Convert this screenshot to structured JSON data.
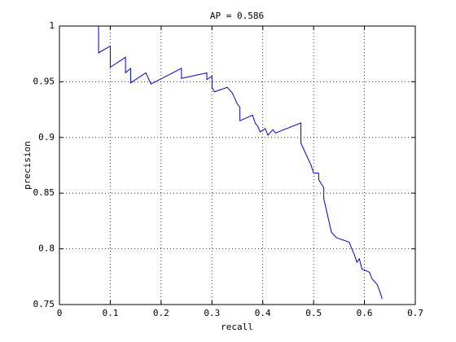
{
  "chart_data": {
    "type": "line",
    "title": "AP = 0.586",
    "x_label": "recall",
    "y_label": "precision",
    "x": [
      0.077,
      0.077,
      0.1,
      0.1,
      0.13,
      0.13,
      0.14,
      0.14,
      0.16,
      0.17,
      0.18,
      0.24,
      0.24,
      0.29,
      0.29,
      0.3,
      0.3,
      0.305,
      0.33,
      0.34,
      0.345,
      0.35,
      0.355,
      0.355,
      0.38,
      0.385,
      0.39,
      0.395,
      0.405,
      0.41,
      0.42,
      0.425,
      0.475,
      0.475,
      0.48,
      0.49,
      0.495,
      0.5,
      0.51,
      0.51,
      0.52,
      0.52,
      0.525,
      0.53,
      0.535,
      0.545,
      0.57,
      0.575,
      0.58,
      0.585,
      0.59,
      0.595,
      0.61,
      0.615,
      0.625,
      0.63,
      0.635
    ],
    "values": [
      1.0,
      0.976,
      0.982,
      0.963,
      0.972,
      0.958,
      0.962,
      0.949,
      0.955,
      0.958,
      0.948,
      0.962,
      0.953,
      0.958,
      0.952,
      0.955,
      0.945,
      0.941,
      0.945,
      0.94,
      0.935,
      0.93,
      0.927,
      0.915,
      0.92,
      0.913,
      0.91,
      0.905,
      0.908,
      0.902,
      0.907,
      0.904,
      0.913,
      0.895,
      0.89,
      0.88,
      0.875,
      0.868,
      0.868,
      0.862,
      0.855,
      0.845,
      0.835,
      0.825,
      0.815,
      0.81,
      0.806,
      0.8,
      0.795,
      0.788,
      0.791,
      0.782,
      0.779,
      0.773,
      0.768,
      0.762,
      0.755
    ],
    "color": "#0000cc",
    "xlim": [
      0,
      0.7
    ],
    "xticks": [
      0,
      0.1,
      0.2,
      0.3,
      0.4,
      0.5,
      0.6,
      0.7
    ],
    "ylim": [
      0.75,
      1
    ],
    "yticks": [
      0.75,
      0.8,
      0.85,
      0.9,
      0.95,
      1
    ],
    "grid": true
  }
}
